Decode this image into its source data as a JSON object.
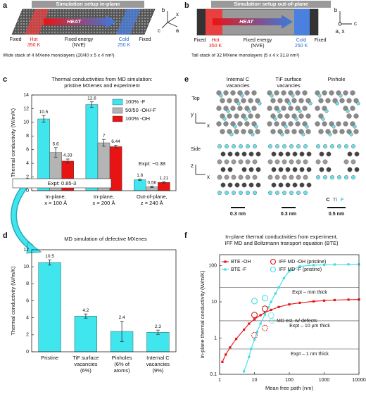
{
  "panel_labels": [
    "a",
    "b",
    "c",
    "d",
    "e",
    "f"
  ],
  "panel_a": {
    "title": "Simulation setup in-plane",
    "heat": "HEAT",
    "fixed_left": "Fixed",
    "hot": "Hot",
    "hot_temp": "350 K",
    "middle": "Fixed energy\n(NVE)",
    "cold": "Cold",
    "cold_temp": "250 K",
    "fixed_right": "Fixed",
    "axes": [
      "b",
      "x",
      "c",
      "a"
    ],
    "caption": "Wide stack of 4 MXene monolayers (20/40 x 5 x 4 nm³)"
  },
  "panel_b": {
    "title": "Simulation setup out-of-plane",
    "heat": "HEAT",
    "fixed_left": "Fixed",
    "hot": "Hot",
    "hot_temp": "350 K",
    "middle": "Fixed energy\n(NVE)",
    "cold": "Cold",
    "cold_temp": "250 K",
    "fixed_right": "Fixed",
    "axes": [
      "b",
      "c",
      "a, x"
    ],
    "caption": "Tall stack of 32 MXene monolayers (5 x 4 x 31.8 nm³)"
  },
  "panel_e": {
    "columns": [
      "Internal C\nvacancies",
      "TiF surface\nvacancies",
      "Pinhole"
    ],
    "rows": [
      "Top",
      "Side"
    ],
    "top_axes": [
      "y",
      "x"
    ],
    "side_axes": [
      "z",
      "x"
    ],
    "scale_bars": [
      "0.3 nm",
      "0.3 nm",
      "0.5 nm"
    ],
    "legend": [
      "C",
      "Ti",
      "F"
    ]
  },
  "chart_data": [
    {
      "type": "bar",
      "title": "Thermal conductivities from MD simulation:\npristine MXenes and experiment",
      "y_label": "Thermal conductivity (W/m/K)",
      "categories": [
        "In-plane,\nx = 100 Å",
        "In-plane,\nx = 200 Å",
        "Out-of-plane,\nz = 240 Å"
      ],
      "series": [
        {
          "name": "100% -F",
          "color": "#3fe6ee",
          "values": [
            10.5,
            12.6,
            1.6
          ],
          "errors": [
            0.5,
            0.4,
            0.1
          ]
        },
        {
          "name": "50/50 -OH/-F",
          "color": "#b4b4b4",
          "values": [
            5.6,
            7,
            0.56
          ],
          "errors": [
            0.7,
            0.5,
            0.1
          ]
        },
        {
          "name": "100% -OH",
          "color": "#e81414",
          "values": [
            4.33,
            6.44,
            1.21
          ],
          "errors": [
            0.3,
            0.2,
            0.1
          ]
        }
      ],
      "ylim": [
        0,
        14
      ],
      "yticks": [
        0,
        2,
        4,
        6,
        8,
        10,
        12,
        14
      ],
      "annotations": [
        "Expt: 0.85-3",
        "Expt: ~0.38"
      ]
    },
    {
      "type": "bar",
      "title": "MD simulation of defective MXenes",
      "y_label": "Thermal conductivity (W/m/K)",
      "categories": [
        "Pristine",
        "TiF surface\nvacancies\n(6%)",
        "Pinholes\n(6% of\natoms)",
        "Internal C\nvacancies\n(9%)"
      ],
      "color": "#3fe6ee",
      "values": [
        10.5,
        4.2,
        2.4,
        2.3
      ],
      "errors": [
        0.3,
        0.25,
        1.2,
        0.25
      ],
      "ylim": [
        0,
        12
      ],
      "yticks": [
        0,
        2,
        4,
        6,
        8,
        10,
        12
      ]
    },
    {
      "type": "line",
      "title": "In-plane thermal conductivities from experiment,\nIFF MD and Boltzmann transport equation (BTE)",
      "x_label": "Mean free path (nm)",
      "y_label": "In-plane thermal conductivity (W/m/K)",
      "log_x": true,
      "log_y": true,
      "xlim": [
        1,
        10000
      ],
      "ylim": [
        0.1,
        200
      ],
      "xticks": [
        1,
        10,
        100,
        1000,
        10000
      ],
      "yticks": [
        0.1,
        1,
        10,
        100
      ],
      "series": [
        {
          "name": "BTE -OH",
          "color": "#e81414",
          "marker": "square",
          "x": [
            1.2,
            1.5,
            2,
            3,
            5,
            7,
            10,
            15,
            20,
            30,
            50,
            100,
            200,
            500,
            1000,
            2000,
            5000,
            10000
          ],
          "values": [
            0.22,
            0.35,
            0.55,
            0.95,
            1.7,
            2.5,
            3.3,
            4.3,
            5,
            6,
            7.2,
            8.5,
            9.4,
            10.3,
            10.8,
            11.2,
            11.5,
            11.6
          ]
        },
        {
          "name": "BTE -F",
          "color": "#3fdce8",
          "marker": "square",
          "x": [
            5,
            7,
            8,
            10,
            12,
            15,
            20,
            25,
            30,
            40,
            50,
            70,
            100,
            200,
            500,
            1000,
            2000,
            5000,
            10000
          ],
          "values": [
            0.12,
            0.3,
            0.5,
            0.9,
            1.5,
            2.5,
            4.5,
            7,
            10,
            17,
            25,
            45,
            70,
            95,
            103,
            105,
            107,
            108,
            108
          ]
        },
        {
          "name": "IFF MD -OH (pristine)",
          "color": "#e81414",
          "marker": "open-circle",
          "x": [
            10,
            20
          ],
          "values": [
            4.33,
            6.44
          ]
        },
        {
          "name": "IFF MD -F (pristine)",
          "color": "#3fdce8",
          "marker": "open-circle",
          "x": [
            10,
            20
          ],
          "values": [
            10.5,
            12.6
          ]
        },
        {
          "name": "MD est. w/ defects",
          "colors": [
            "#e81414",
            "#e81414",
            "#3fdce8"
          ],
          "marker": "dashed-circle",
          "x": [
            10,
            20,
            30
          ],
          "values": [
            1.2,
            1.9,
            4.2
          ]
        }
      ],
      "reference_lines": [
        {
          "label": "Expt – mm thick",
          "value": 25
        },
        {
          "label": "Expt – 10 μm thick",
          "value": 3
        },
        {
          "label": "Expt – 1 nm thick",
          "value": 0.5
        }
      ]
    }
  ]
}
